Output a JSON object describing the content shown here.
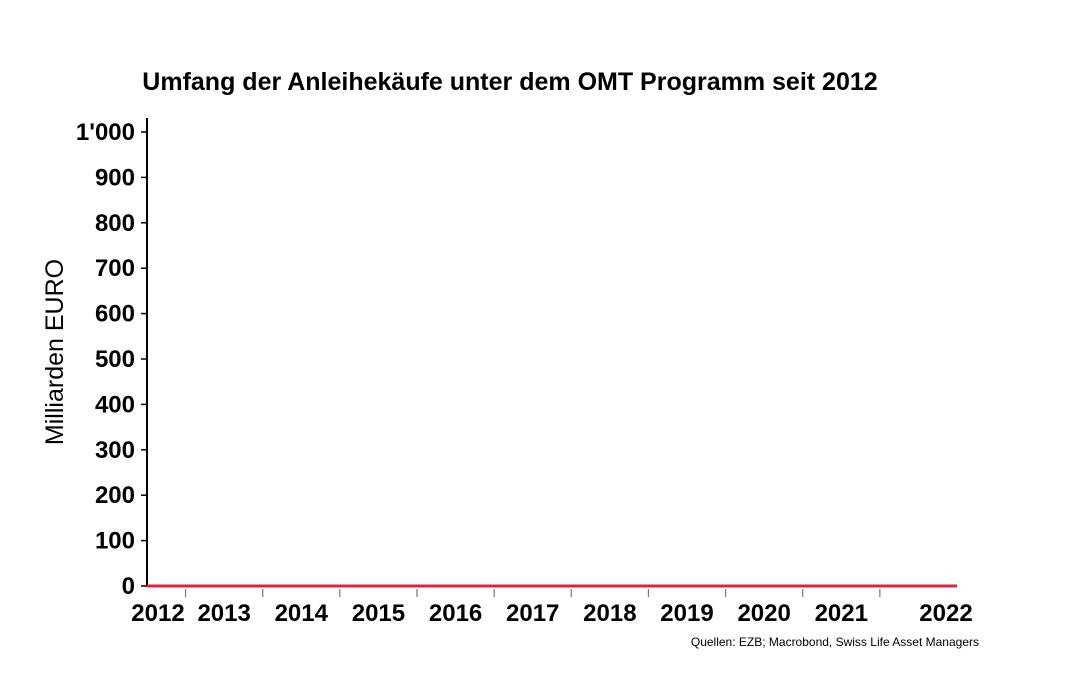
{
  "chart_data": {
    "type": "line",
    "title": "Umfang der Anleihekäufe unter dem OMT Programm seit 2012",
    "ylabel": "Milliarden EURO",
    "xlabel": "",
    "ylim": [
      0,
      1000
    ],
    "y_ticks": [
      0,
      100,
      200,
      300,
      400,
      500,
      600,
      700,
      800,
      900,
      1000
    ],
    "y_tick_labels": [
      "0",
      "100",
      "200",
      "300",
      "400",
      "500",
      "600",
      "700",
      "800",
      "900",
      "1'000"
    ],
    "x_tick_labels": [
      "2012",
      "2013",
      "2014",
      "2015",
      "2016",
      "2017",
      "2018",
      "2019",
      "2020",
      "2021",
      "2022"
    ],
    "xlim": [
      2012.0,
      2022.5
    ],
    "series": [
      {
        "color": "#d7263d",
        "x": [
          2012.0,
          2012.5,
          2013,
          2014,
          2015,
          2016,
          2017,
          2018,
          2019,
          2020,
          2021,
          2022,
          2022.5
        ],
        "y": [
          0,
          0,
          0,
          0,
          0,
          0,
          0,
          0,
          0,
          0,
          0,
          0,
          0
        ]
      }
    ],
    "grid": false,
    "legend": "none",
    "source": "Quellen: EZB; Macrobond, Swiss Life Asset Managers"
  }
}
